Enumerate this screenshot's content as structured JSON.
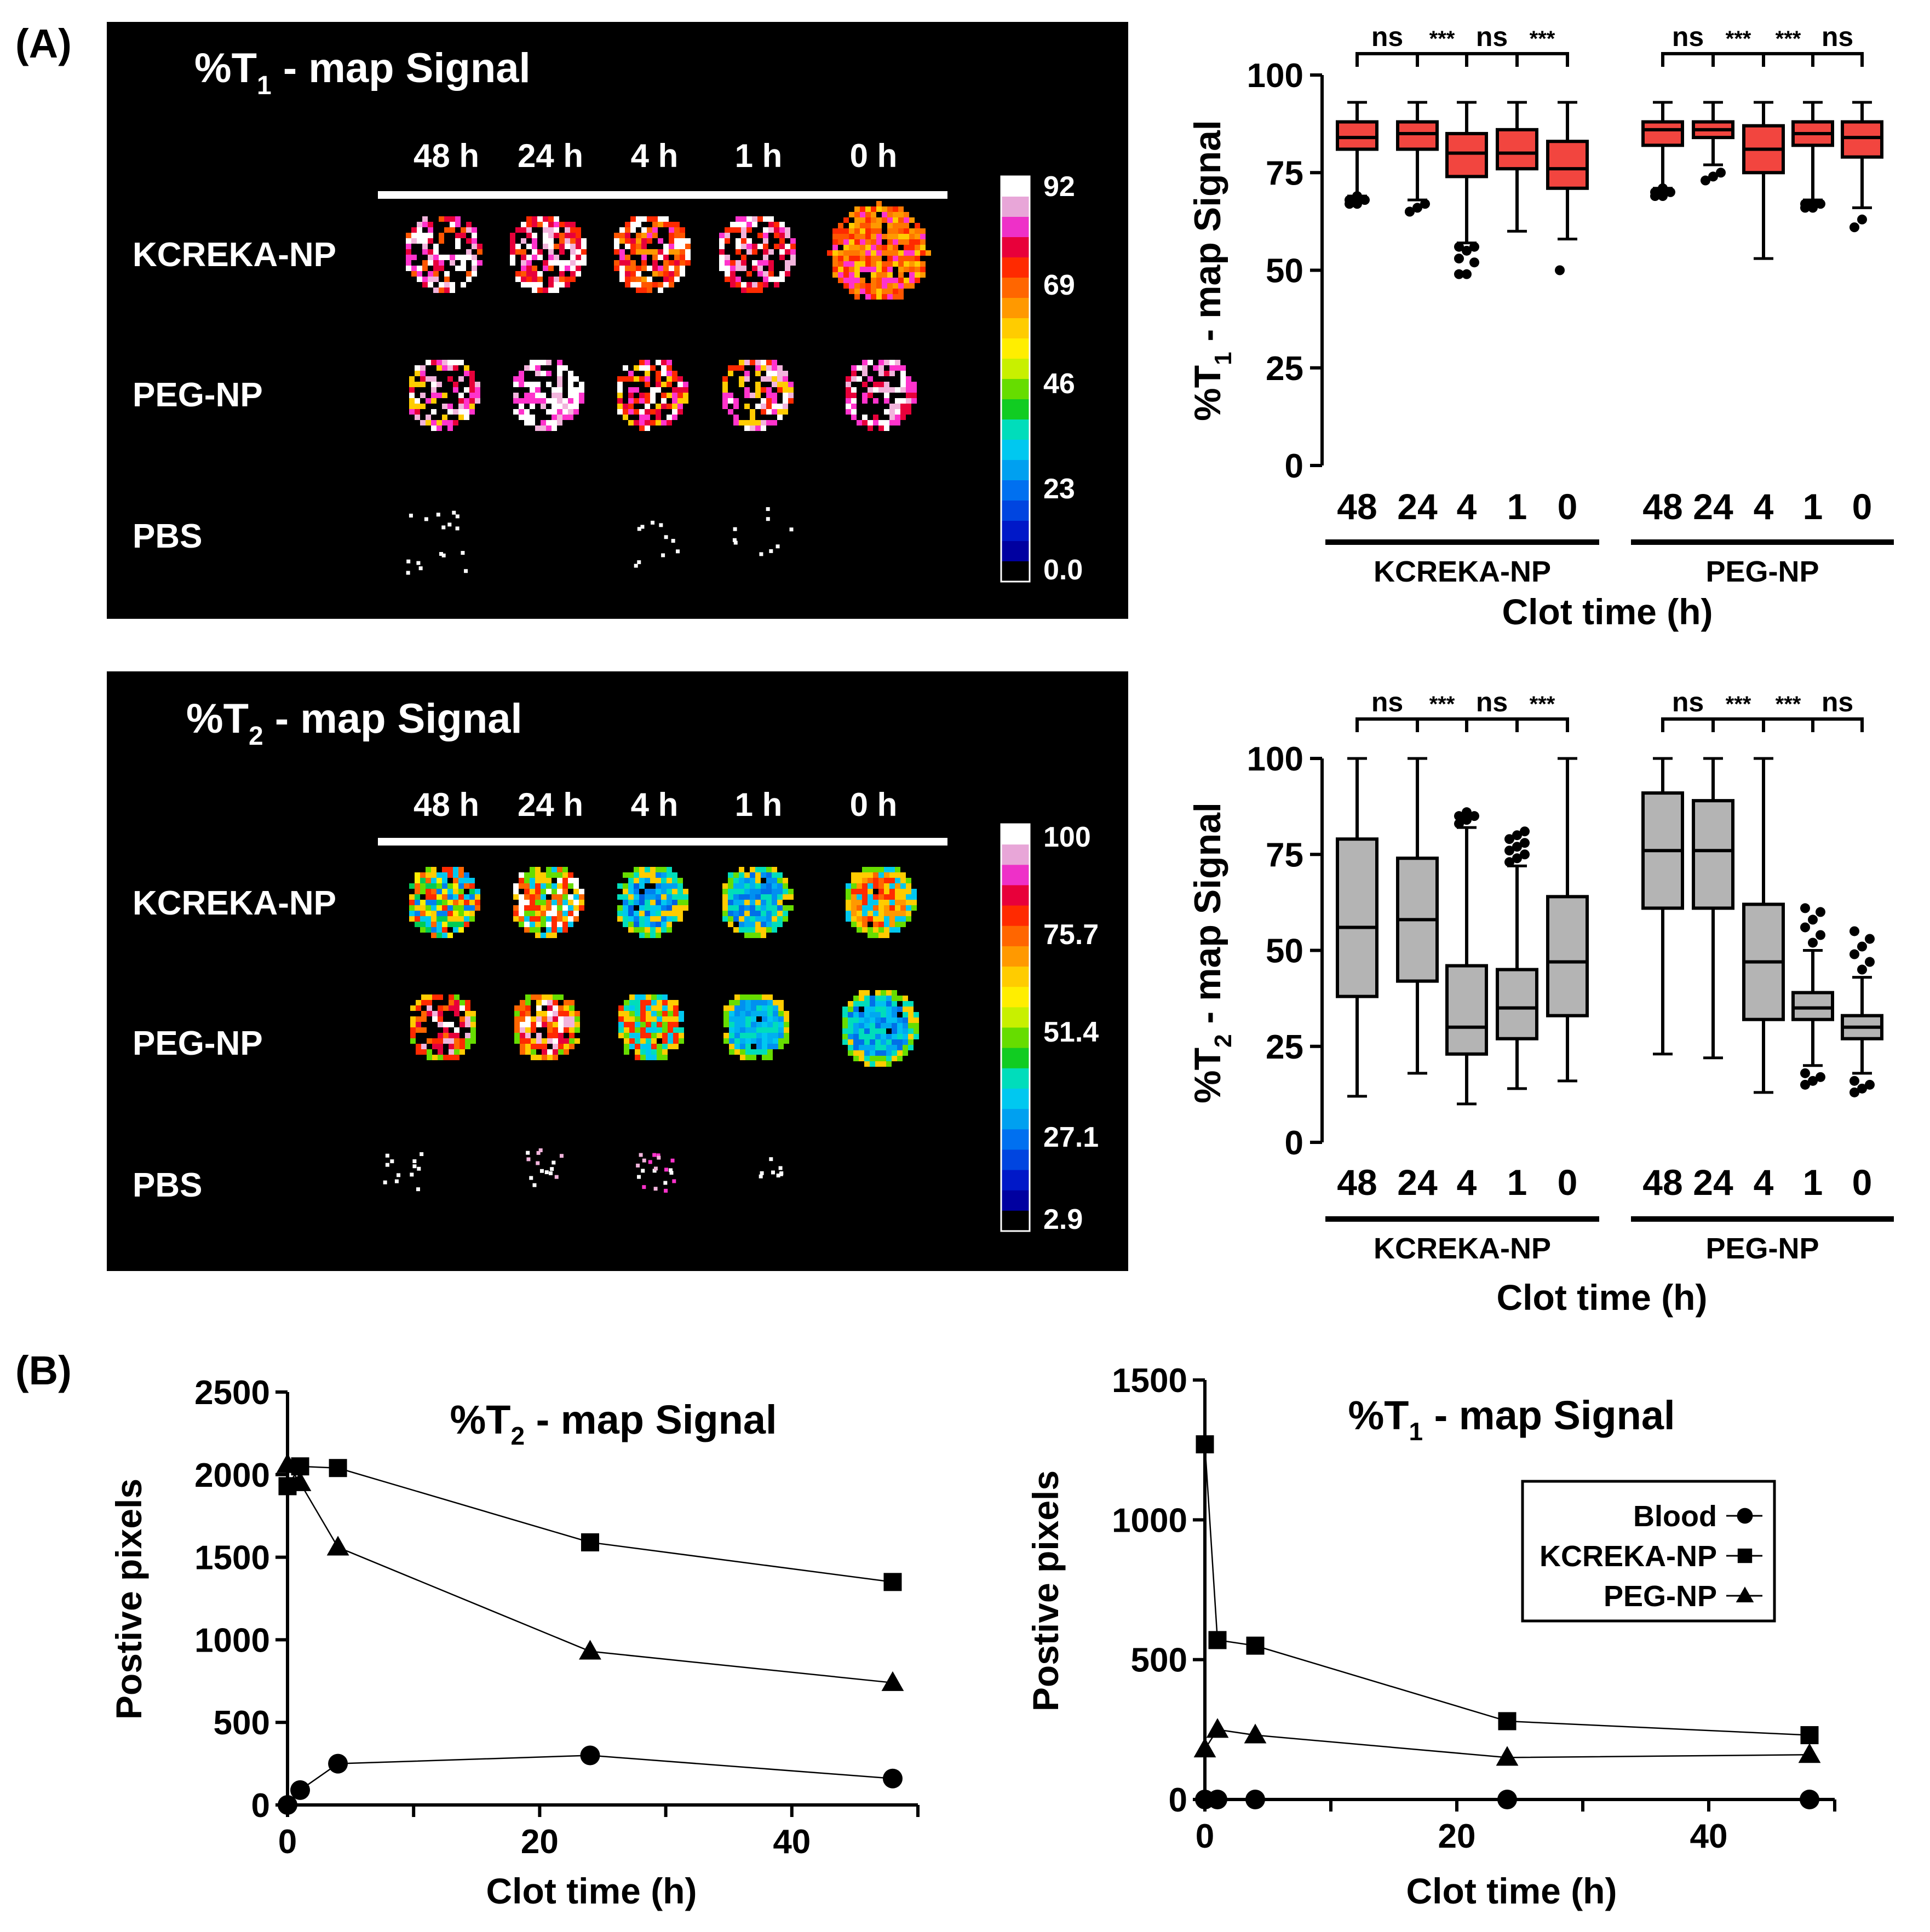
{
  "panel_labels": {
    "a": "(A)",
    "b": "(B)"
  },
  "colors": {
    "red_box": "#f2453f",
    "gray_box": "#b4b4b4",
    "panel_bg": "#000000",
    "ink": "#000000"
  },
  "colorbars": [
    {
      "ticks": [
        "92",
        "69",
        "46",
        "23",
        "0.0"
      ]
    },
    {
      "ticks": [
        "100",
        "75.7",
        "51.4",
        "27.1",
        "2.9"
      ]
    }
  ],
  "chart_data": [
    {
      "id": "t1_map_image",
      "type": "image_grid",
      "title_main": "%T",
      "title_sub": "1",
      "title_rest": " - map Signal",
      "columns": [
        "48 h",
        "24 h",
        "4 h",
        "1 h",
        "0 h"
      ],
      "rows": [
        "KCREKA-NP",
        "PEG-NP",
        "PBS"
      ],
      "colorbar_ticks": [
        "92",
        "69",
        "46",
        "23",
        "0.0"
      ],
      "colorbar_range": [
        0,
        92
      ]
    },
    {
      "id": "t2_map_image",
      "type": "image_grid",
      "title_main": "%T",
      "title_sub": "2",
      "title_rest": " - map Signal",
      "columns": [
        "48 h",
        "24 h",
        "4 h",
        "1 h",
        "0 h"
      ],
      "rows": [
        "KCREKA-NP",
        "PEG-NP",
        "PBS"
      ],
      "colorbar_ticks": [
        "100",
        "75.7",
        "51.4",
        "27.1",
        "2.9"
      ],
      "colorbar_range": [
        2.9,
        100
      ]
    },
    {
      "id": "t1_box",
      "type": "box",
      "ylabel_main": "%T",
      "ylabel_sub": "1",
      "ylabel_rest": " - map Signal",
      "xlabel": "Clot time (h)",
      "ylim": [
        0,
        100
      ],
      "yticks": [
        0,
        25,
        50,
        75,
        100
      ],
      "groups": [
        "KCREKA-NP",
        "PEG-NP"
      ],
      "categories": [
        "48",
        "24",
        "4",
        "1",
        "0"
      ],
      "significance": [
        [
          "ns",
          "***",
          "ns",
          "***"
        ],
        [
          "ns",
          "***",
          "***",
          "ns"
        ]
      ],
      "series": [
        {
          "name": "KCREKA-NP",
          "boxes": [
            {
              "min": 69,
              "q1": 81,
              "median": 84,
              "q3": 88,
              "max": 93,
              "outliers": [
                67,
                67,
                68,
                68,
                69
              ]
            },
            {
              "min": 68,
              "q1": 81,
              "median": 85,
              "q3": 88,
              "max": 93,
              "outliers": [
                65,
                66,
                67,
                65
              ]
            },
            {
              "min": 57,
              "q1": 74,
              "median": 80,
              "q3": 85,
              "max": 93,
              "outliers": [
                49,
                49,
                52,
                53,
                55,
                56,
                56
              ]
            },
            {
              "min": 60,
              "q1": 76,
              "median": 80,
              "q3": 86,
              "max": 93,
              "outliers": []
            },
            {
              "min": 58,
              "q1": 71,
              "median": 76,
              "q3": 83,
              "max": 93,
              "outliers": [
                50
              ]
            }
          ]
        },
        {
          "name": "PEG-NP",
          "boxes": [
            {
              "min": 71,
              "q1": 82,
              "median": 86,
              "q3": 88,
              "max": 93,
              "outliers": [
                69,
                69,
                70,
                70,
                71
              ]
            },
            {
              "min": 77,
              "q1": 84,
              "median": 86,
              "q3": 88,
              "max": 93,
              "outliers": [
                73,
                74,
                75
              ]
            },
            {
              "min": 53,
              "q1": 75,
              "median": 81,
              "q3": 87,
              "max": 93,
              "outliers": []
            },
            {
              "min": 68,
              "q1": 82,
              "median": 85,
              "q3": 88,
              "max": 93,
              "outliers": [
                66,
                66,
                67,
                67,
                67
              ]
            },
            {
              "min": 66,
              "q1": 79,
              "median": 84,
              "q3": 88,
              "max": 93,
              "outliers": [
                61,
                63
              ]
            }
          ]
        }
      ]
    },
    {
      "id": "t2_box",
      "type": "box",
      "ylabel_main": "%T",
      "ylabel_sub": "2",
      "ylabel_rest": " - map Signal",
      "xlabel": "Clot time (h)",
      "ylim": [
        0,
        100
      ],
      "yticks": [
        0,
        25,
        50,
        75,
        100
      ],
      "groups": [
        "KCREKA-NP",
        "PEG-NP"
      ],
      "categories": [
        "48",
        "24",
        "4",
        "1",
        "0"
      ],
      "significance": [
        [
          "ns",
          "***",
          "ns",
          "***"
        ],
        [
          "ns",
          "***",
          "***",
          "ns"
        ]
      ],
      "series": [
        {
          "name": "KCREKA-NP",
          "boxes": [
            {
              "min": 12,
              "q1": 38,
              "median": 56,
              "q3": 79,
              "max": 100,
              "outliers": []
            },
            {
              "min": 18,
              "q1": 42,
              "median": 58,
              "q3": 74,
              "max": 100,
              "outliers": []
            },
            {
              "min": 10,
              "q1": 23,
              "median": 30,
              "q3": 46,
              "max": 82,
              "outliers": [
                83,
                84,
                85,
                85,
                86
              ]
            },
            {
              "min": 14,
              "q1": 27,
              "median": 35,
              "q3": 45,
              "max": 72,
              "outliers": [
                73,
                74,
                75,
                76,
                77,
                78,
                79,
                80,
                81
              ]
            },
            {
              "min": 16,
              "q1": 33,
              "median": 47,
              "q3": 64,
              "max": 100,
              "outliers": []
            }
          ]
        },
        {
          "name": "PEG-NP",
          "boxes": [
            {
              "min": 23,
              "q1": 61,
              "median": 76,
              "q3": 91,
              "max": 100,
              "outliers": []
            },
            {
              "min": 22,
              "q1": 61,
              "median": 76,
              "q3": 89,
              "max": 100,
              "outliers": []
            },
            {
              "min": 13,
              "q1": 32,
              "median": 47,
              "q3": 62,
              "max": 100,
              "outliers": []
            },
            {
              "min": 20,
              "q1": 32,
              "median": 35,
              "q3": 39,
              "max": 50,
              "outliers": [
                15,
                16,
                17,
                18,
                52,
                54,
                56,
                58,
                60,
                61
              ]
            },
            {
              "min": 18,
              "q1": 27,
              "median": 30,
              "q3": 33,
              "max": 43,
              "outliers": [
                13,
                14,
                15,
                16,
                45,
                47,
                49,
                51,
                53,
                55
              ]
            }
          ]
        }
      ]
    },
    {
      "id": "t2_line",
      "type": "line",
      "title_main": "%T",
      "title_sub": "2",
      "title_rest": " - map Signal",
      "xlabel": "Clot time (h)",
      "ylabel": "Postive pixels",
      "xlim": [
        0,
        50
      ],
      "ylim": [
        0,
        2500
      ],
      "xticks": [
        0,
        20,
        40
      ],
      "yticks": [
        0,
        500,
        1000,
        1500,
        2000,
        2500
      ],
      "series": [
        {
          "name": "Blood",
          "marker": "circle",
          "x": [
            0,
            1,
            4,
            24,
            48
          ],
          "y": [
            0,
            90,
            250,
            300,
            160
          ]
        },
        {
          "name": "KCREKA-NP",
          "marker": "square",
          "x": [
            0,
            1,
            4,
            24,
            48
          ],
          "y": [
            1930,
            2050,
            2040,
            1590,
            1350
          ]
        },
        {
          "name": "PEG-NP",
          "marker": "triangle",
          "x": [
            0,
            1,
            4,
            24,
            48
          ],
          "y": [
            2060,
            1950,
            1560,
            930,
            740
          ]
        }
      ]
    },
    {
      "id": "t1_line",
      "type": "line",
      "title_main": "%T",
      "title_sub": "1",
      "title_rest": " - map Signal",
      "xlabel": "Clot time (h)",
      "ylabel": "Postive pixels",
      "xlim": [
        0,
        50
      ],
      "ylim": [
        0,
        1500
      ],
      "xticks": [
        0,
        20,
        40
      ],
      "yticks": [
        0,
        500,
        1000,
        1500
      ],
      "legend": [
        "Blood",
        "KCREKA-NP",
        "PEG-NP"
      ],
      "series": [
        {
          "name": "Blood",
          "marker": "circle",
          "x": [
            0,
            1,
            4,
            24,
            48
          ],
          "y": [
            0,
            0,
            0,
            0,
            0
          ]
        },
        {
          "name": "KCREKA-NP",
          "marker": "square",
          "x": [
            0,
            1,
            4,
            24,
            48
          ],
          "y": [
            1270,
            570,
            550,
            280,
            230
          ]
        },
        {
          "name": "PEG-NP",
          "marker": "triangle",
          "x": [
            0,
            1,
            4,
            24,
            48
          ],
          "y": [
            180,
            250,
            230,
            150,
            160
          ]
        }
      ]
    }
  ]
}
